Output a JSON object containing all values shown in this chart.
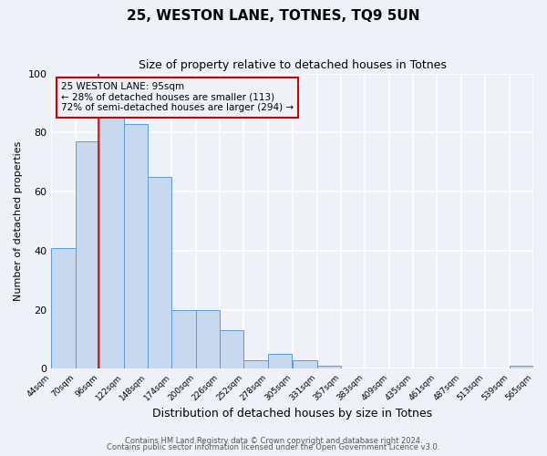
{
  "title": "25, WESTON LANE, TOTNES, TQ9 5UN",
  "subtitle": "Size of property relative to detached houses in Totnes",
  "xlabel": "Distribution of detached houses by size in Totnes",
  "ylabel": "Number of detached properties",
  "bin_edges": [
    44,
    70,
    96,
    122,
    148,
    174,
    200,
    226,
    252,
    278,
    305,
    331,
    357,
    383,
    409,
    435,
    461,
    487,
    513,
    539,
    565
  ],
  "bar_heights": [
    41,
    77,
    85,
    83,
    65,
    20,
    20,
    13,
    3,
    5,
    3,
    1,
    0,
    0,
    0,
    0,
    0,
    0,
    0,
    1
  ],
  "bar_color": "#c8d8ee",
  "bar_edge_color": "#5b9bd5",
  "property_line_x": 95,
  "property_line_color": "#cc0000",
  "annotation_text": "25 WESTON LANE: 95sqm\n← 28% of detached houses are smaller (113)\n72% of semi-detached houses are larger (294) →",
  "annotation_box_color": "#cc0000",
  "ylim": [
    0,
    100
  ],
  "yticks": [
    0,
    20,
    40,
    60,
    80,
    100
  ],
  "tick_labels": [
    "44sqm",
    "70sqm",
    "96sqm",
    "122sqm",
    "148sqm",
    "174sqm",
    "200sqm",
    "226sqm",
    "252sqm",
    "278sqm",
    "305sqm",
    "331sqm",
    "357sqm",
    "383sqm",
    "409sqm",
    "435sqm",
    "461sqm",
    "487sqm",
    "513sqm",
    "539sqm",
    "565sqm"
  ],
  "footer_line1": "Contains HM Land Registry data © Crown copyright and database right 2024.",
  "footer_line2": "Contains public sector information licensed under the Open Government Licence v3.0.",
  "background_color": "#eef2f8",
  "grid_color": "#ffffff",
  "title_fontsize": 11,
  "subtitle_fontsize": 9,
  "ylabel_fontsize": 8,
  "xlabel_fontsize": 9,
  "tick_fontsize": 6.5,
  "footer_fontsize": 6,
  "annotation_fontsize": 7.5
}
